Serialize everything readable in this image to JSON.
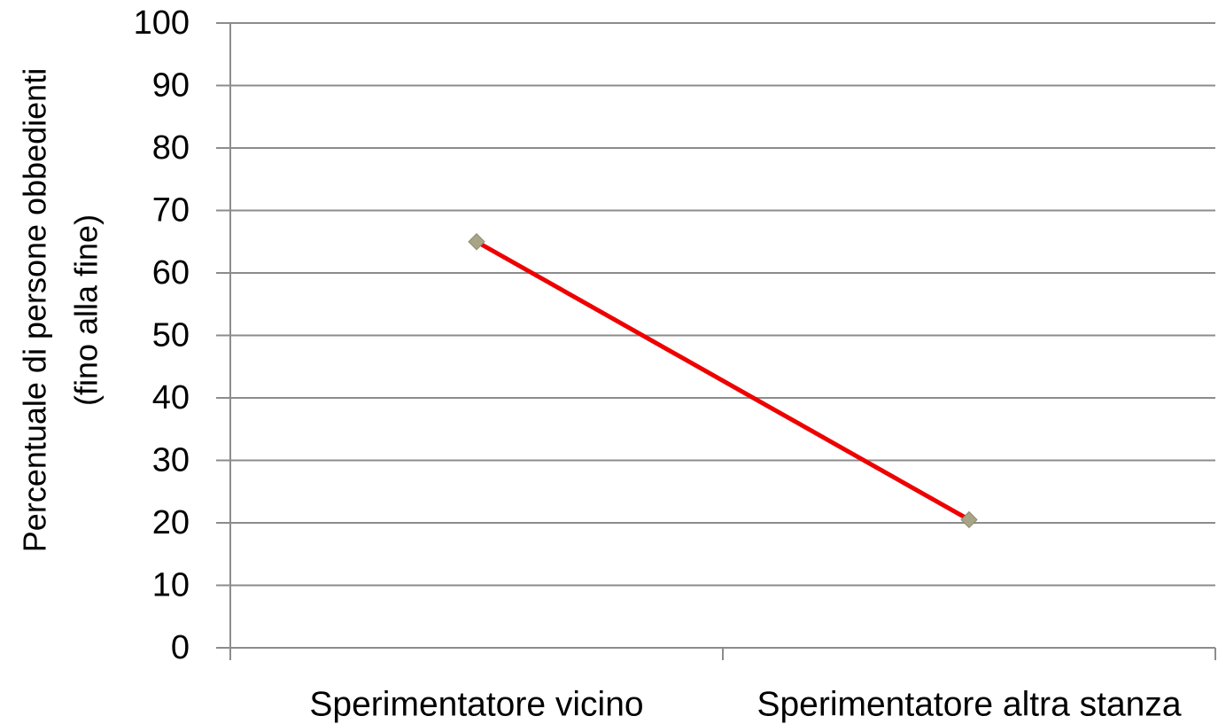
{
  "chart_data": {
    "type": "line",
    "y_label": [
      "Percentuale di persone obbedienti",
      "(fino alla fine)"
    ],
    "categories": [
      "Sperimentatore vicino",
      "Sperimentatore altra stanza"
    ],
    "series": [
      {
        "color": "#ee0000",
        "marker_color": "#a8a486",
        "values": [
          65,
          20.5
        ]
      }
    ],
    "ylim": [
      0,
      100
    ],
    "yticks": [
      0,
      10,
      20,
      30,
      40,
      50,
      60,
      70,
      80,
      90,
      100
    ],
    "grid": true
  }
}
